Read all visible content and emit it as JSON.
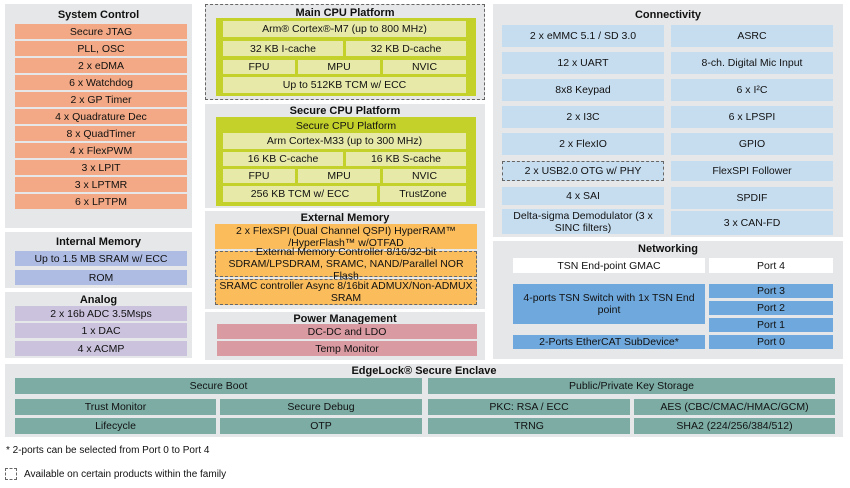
{
  "colors": {
    "panel": "#e6e7e8",
    "system_control": "#f3a985",
    "internal_memory": "#aebce4",
    "analog": "#cbc2de",
    "cpu_green": "#c5d12b",
    "cpu_cell": "#e6e9a8",
    "external_memory": "#fbbd5c",
    "power": "#d99aa2",
    "connectivity": "#c6ddf0",
    "networking": "#6fa8dc",
    "edgelock": "#7caca4"
  },
  "system_control": {
    "title": "System Control",
    "items": [
      "Secure JTAG",
      "PLL, OSC",
      "2 x eDMA",
      "6 x Watchdog",
      "2 x GP Timer",
      "4 x Quadrature Dec",
      "8 x QuadTimer",
      "4 x FlexPWM",
      "3 x LPIT",
      "3 x LPTMR",
      "6 x LPTPM"
    ]
  },
  "internal_memory": {
    "title": "Internal Memory",
    "items": [
      "Up to 1.5 MB SRAM w/ ECC",
      "ROM"
    ]
  },
  "analog": {
    "title": "Analog",
    "items": [
      "2 x 16b ADC 3.5Msps",
      "1 x DAC",
      "4 x ACMP"
    ]
  },
  "main_cpu": {
    "title": "Main CPU Platform",
    "core": "Arm® Cortex®-M7 (up to 800 MHz)",
    "icache": "32 KB I-cache",
    "dcache": "32 KB D-cache",
    "fpu": "FPU",
    "mpu": "MPU",
    "nvic": "NVIC",
    "tcm": "Up to 512KB TCM w/ ECC"
  },
  "secure_cpu": {
    "title": "Secure CPU Platform",
    "subtitle": "Secure CPU Platform",
    "core": "Arm Cortex-M33 (up to 300 MHz)",
    "ccache": "16 KB C-cache",
    "scache": "16 KB S-cache",
    "fpu": "FPU",
    "mpu": "MPU",
    "nvic": "NVIC",
    "tcm": "256 KB TCM w/ ECC",
    "trustzone": "TrustZone"
  },
  "external_memory": {
    "title": "External Memory",
    "flexspi": "2 x FlexSPI (Dual Channel QSPI) HyperRAM™ /HyperFlash™ w/OTFAD",
    "emc": "External Memory Controller 8/16/32-bit SDRAM/LPSDRAM, SRAMC, NAND/Parallel NOR Flash",
    "sramc": "SRAMC controller Async 8/16bit ADMUX/Non-ADMUX SRAM"
  },
  "power": {
    "title": "Power Management",
    "items": [
      "DC-DC and LDO",
      "Temp Monitor"
    ]
  },
  "connectivity": {
    "title": "Connectivity",
    "left": [
      "2 x eMMC 5.1 / SD 3.0",
      "12 x UART",
      "8x8 Keypad",
      "2 x I3C",
      "2 x FlexIO",
      "2 x USB2.0 OTG w/ PHY",
      "4 x SAI",
      "Delta-sigma Demodulator (3 x SINC filters)"
    ],
    "right": [
      "ASRC",
      "8-ch. Digital Mic Input",
      "6 x I²C",
      "6 x LPSPI",
      "GPIO",
      "FlexSPI Follower",
      "SPDIF",
      "3 x CAN-FD"
    ]
  },
  "networking": {
    "title": "Networking",
    "gmac": "TSN End-point GMAC",
    "port4": "Port 4",
    "switch": "4-ports TSN Switch with 1x TSN End point",
    "port3": "Port 3",
    "port2": "Port 2",
    "port1": "Port 1",
    "ethercat": "2-Ports EtherCAT SubDevice*",
    "port0": "Port 0"
  },
  "edgelock": {
    "title": "EdgeLock® Secure Enclave",
    "secure_boot": "Secure Boot",
    "key_storage": "Public/Private Key Storage",
    "trust_monitor": "Trust Monitor",
    "secure_debug": "Secure Debug",
    "pkc": "PKC: RSA / ECC",
    "aes": "AES (CBC/CMAC/HMAC/GCM)",
    "lifecycle": "Lifecycle",
    "otp": "OTP",
    "trng": "TRNG",
    "sha2": "SHA2 (224/256/384/512)"
  },
  "footnotes": {
    "note": "* 2-ports can be selected from Port 0 to Port 4",
    "legend": "Available on certain products within the family"
  }
}
